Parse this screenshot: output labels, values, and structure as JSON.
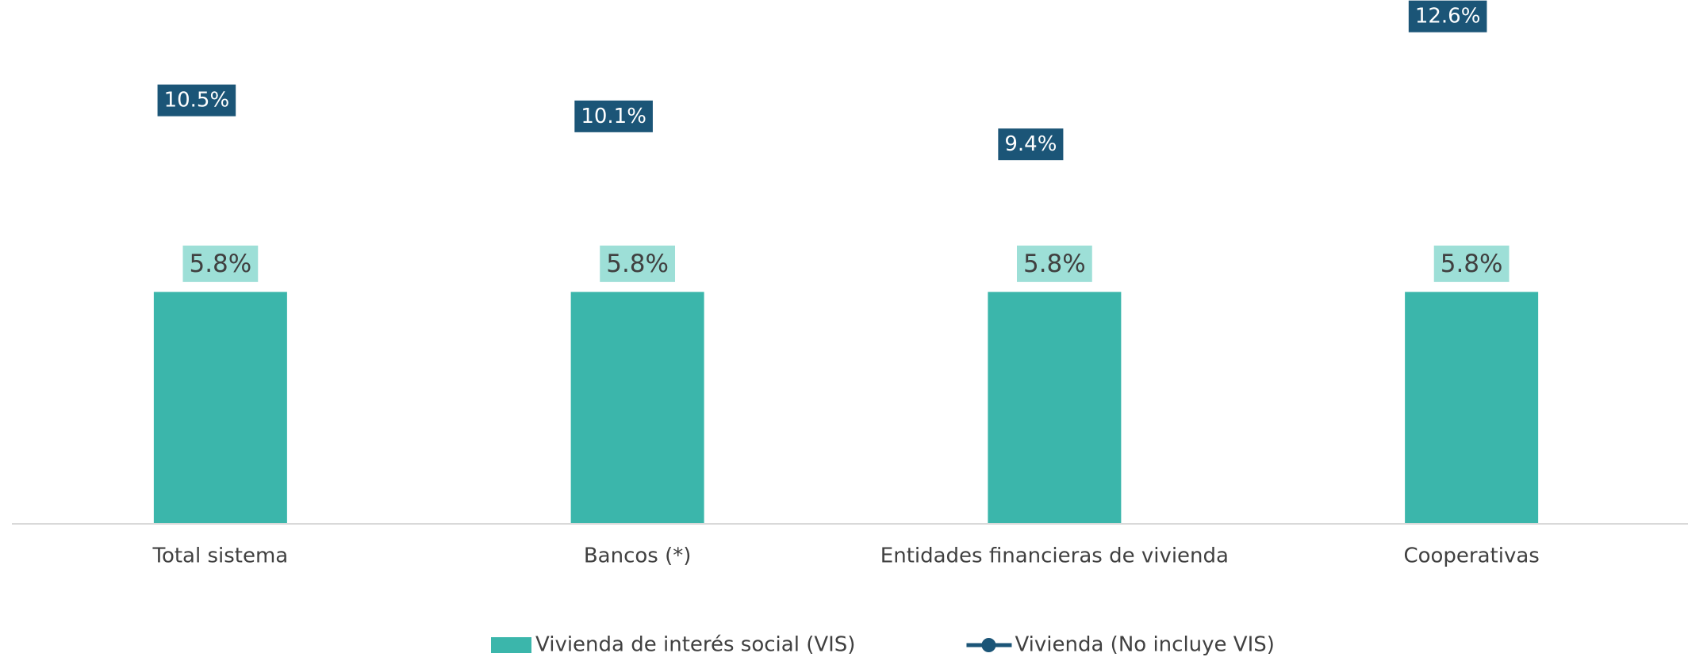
{
  "chart_data": {
    "type": "bar_line",
    "categories": [
      "Total sistema",
      "Bancos (*)",
      "Entidades financieras de vivienda",
      "Cooperativas"
    ],
    "series": [
      {
        "name": "Vivienda de interés social (VIS)",
        "type": "bar",
        "color": "#3bb6ab",
        "label_color": "#9ddfd7",
        "values": [
          5.8,
          5.8,
          5.8,
          5.8
        ],
        "value_labels": [
          "5.8%",
          "5.8%",
          "5.8%",
          "5.8%"
        ]
      },
      {
        "name": "Vivienda (No incluye VIS)",
        "type": "line",
        "color": "#1b5577",
        "values": [
          10.5,
          10.1,
          9.4,
          12.6
        ],
        "value_labels": [
          "10.5%",
          "10.1%",
          "9.4%",
          "12.6%"
        ]
      }
    ],
    "ylim": [
      0,
      13
    ]
  }
}
